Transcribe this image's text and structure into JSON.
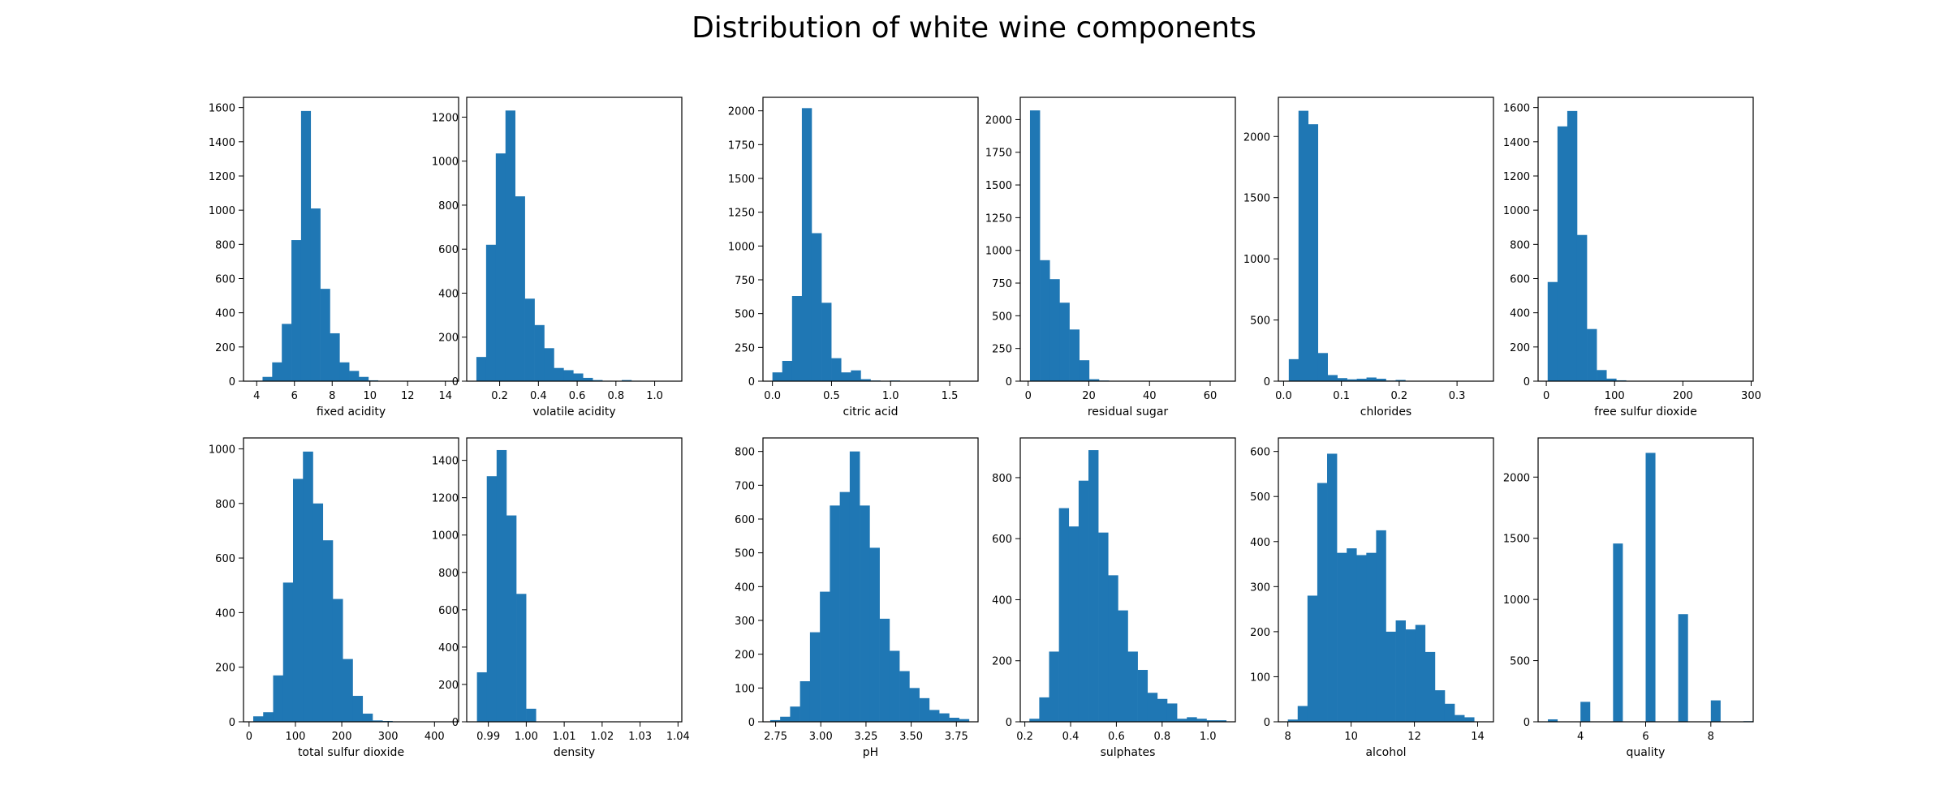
{
  "title": "Distribution of white wine components",
  "chart_data": [
    {
      "type": "bar",
      "xlabel": "fixed acidity",
      "xlim": [
        3.3,
        14.7
      ],
      "ylim": [
        0,
        1660
      ],
      "x_ticks": [
        4,
        6,
        8,
        10,
        12,
        14
      ],
      "y_ticks": [
        0,
        200,
        400,
        600,
        800,
        1000,
        1200,
        1400,
        1600
      ],
      "bin_start": 3.8,
      "bin_width": 0.51,
      "values": [
        3,
        25,
        110,
        335,
        825,
        1580,
        1010,
        540,
        280,
        110,
        60,
        25,
        5,
        2,
        1,
        0,
        0,
        0,
        0,
        1
      ]
    },
    {
      "type": "bar",
      "xlabel": "volatile acidity",
      "xlim": [
        0.03,
        1.14
      ],
      "ylim": [
        0,
        1290
      ],
      "x_ticks": [
        0.2,
        0.4,
        0.6,
        0.8,
        1.0
      ],
      "y_ticks": [
        0,
        200,
        400,
        600,
        800,
        1000,
        1200
      ],
      "bin_start": 0.08,
      "bin_width": 0.05,
      "values": [
        110,
        620,
        1035,
        1230,
        840,
        375,
        255,
        150,
        60,
        50,
        35,
        15,
        5,
        2,
        1,
        5,
        2,
        0,
        0,
        1
      ]
    },
    {
      "type": "bar",
      "xlabel": "citric acid",
      "xlim": [
        -0.08,
        1.74
      ],
      "ylim": [
        0,
        2100
      ],
      "x_ticks": [
        0.0,
        0.5,
        1.0,
        1.5
      ],
      "y_ticks": [
        0,
        250,
        500,
        750,
        1000,
        1250,
        1500,
        1750,
        2000
      ],
      "bin_start": 0.0,
      "bin_width": 0.083,
      "values": [
        65,
        150,
        630,
        2020,
        1095,
        580,
        170,
        65,
        80,
        15,
        5,
        3,
        5,
        1,
        0,
        0,
        0,
        0,
        0,
        1
      ]
    },
    {
      "type": "bar",
      "xlabel": "residual sugar",
      "xlim": [
        -2.6,
        68.3
      ],
      "ylim": [
        0,
        2170
      ],
      "x_ticks": [
        0,
        20,
        40,
        60
      ],
      "y_ticks": [
        0,
        250,
        500,
        750,
        1000,
        1250,
        1500,
        1750,
        2000
      ],
      "bin_start": 0.6,
      "bin_width": 3.25,
      "values": [
        2070,
        925,
        780,
        600,
        395,
        160,
        15,
        5,
        0,
        0,
        0,
        0,
        0,
        0,
        0,
        0,
        0,
        0,
        0,
        1
      ]
    },
    {
      "type": "bar",
      "xlabel": "chlorides",
      "xlim": [
        -0.009,
        0.363
      ],
      "ylim": [
        0,
        2320
      ],
      "x_ticks": [
        0.0,
        0.1,
        0.2,
        0.3
      ],
      "y_ticks": [
        0,
        500,
        1000,
        1500,
        2000
      ],
      "bin_start": 0.009,
      "bin_width": 0.0168,
      "values": [
        180,
        2210,
        2100,
        230,
        50,
        25,
        15,
        20,
        30,
        20,
        5,
        10,
        2,
        0,
        0,
        0,
        0,
        0,
        0,
        1
      ]
    },
    {
      "type": "bar",
      "xlabel": "free sulfur dioxide",
      "xlim": [
        -12,
        303
      ],
      "ylim": [
        0,
        1660
      ],
      "x_ticks": [
        0,
        100,
        200,
        300
      ],
      "y_ticks": [
        0,
        200,
        400,
        600,
        800,
        1000,
        1200,
        1400,
        1600
      ],
      "bin_start": 2,
      "bin_width": 14.35,
      "values": [
        580,
        1490,
        1580,
        855,
        305,
        65,
        15,
        5,
        2,
        1,
        0,
        0,
        0,
        0,
        0,
        0,
        0,
        0,
        0,
        1
      ]
    },
    {
      "type": "bar",
      "xlabel": "total sulfur dioxide",
      "xlim": [
        -12,
        452
      ],
      "ylim": [
        0,
        1040
      ],
      "x_ticks": [
        0,
        100,
        200,
        300,
        400
      ],
      "y_ticks": [
        0,
        200,
        400,
        600,
        800,
        1000
      ],
      "bin_start": 9,
      "bin_width": 21.45,
      "values": [
        20,
        35,
        170,
        510,
        890,
        990,
        800,
        665,
        450,
        230,
        95,
        30,
        5,
        3,
        1,
        0,
        0,
        0,
        0,
        1
      ]
    },
    {
      "type": "bar",
      "xlabel": "density",
      "xlim": [
        0.9843,
        1.041
      ],
      "ylim": [
        0,
        1520
      ],
      "x_ticks": [
        0.99,
        1.0,
        1.01,
        1.02,
        1.03,
        1.04
      ],
      "y_ticks": [
        0,
        200,
        400,
        600,
        800,
        1000,
        1200,
        1400
      ],
      "bin_start": 0.987,
      "bin_width": 0.00259,
      "values": [
        265,
        1315,
        1455,
        1105,
        685,
        70,
        0,
        0,
        0,
        0,
        0,
        0,
        0,
        0,
        0,
        0,
        0,
        0,
        0,
        1
      ]
    },
    {
      "type": "bar",
      "xlabel": "pH",
      "xlim": [
        2.68,
        3.87
      ],
      "ylim": [
        0,
        840
      ],
      "x_ticks": [
        2.75,
        3.0,
        3.25,
        3.5,
        3.75
      ],
      "y_ticks": [
        0,
        100,
        200,
        300,
        400,
        500,
        600,
        700,
        800
      ],
      "bin_start": 2.72,
      "bin_width": 0.055,
      "values": [
        5,
        15,
        45,
        120,
        265,
        385,
        640,
        680,
        800,
        640,
        515,
        305,
        210,
        150,
        100,
        70,
        35,
        25,
        12,
        8
      ]
    },
    {
      "type": "bar",
      "xlabel": "sulphates",
      "xlim": [
        0.18,
        1.12
      ],
      "ylim": [
        0,
        930
      ],
      "x_ticks": [
        0.2,
        0.4,
        0.6,
        0.8,
        1.0
      ],
      "y_ticks": [
        0,
        200,
        400,
        600,
        800
      ],
      "bin_start": 0.22,
      "bin_width": 0.043,
      "values": [
        10,
        80,
        230,
        700,
        640,
        790,
        890,
        620,
        480,
        365,
        230,
        170,
        95,
        75,
        60,
        10,
        15,
        10,
        5,
        5
      ]
    },
    {
      "type": "bar",
      "xlabel": "alcohol",
      "xlim": [
        7.7,
        14.5
      ],
      "ylim": [
        0,
        630
      ],
      "x_ticks": [
        8,
        10,
        12,
        14
      ],
      "y_ticks": [
        0,
        100,
        200,
        300,
        400,
        500,
        600
      ],
      "bin_start": 8.0,
      "bin_width": 0.31,
      "values": [
        5,
        35,
        280,
        530,
        595,
        375,
        385,
        370,
        375,
        425,
        200,
        225,
        205,
        215,
        155,
        70,
        40,
        15,
        10,
        0
      ]
    },
    {
      "type": "bar",
      "xlabel": "quality",
      "xlim": [
        2.7,
        9.3
      ],
      "ylim": [
        0,
        2320
      ],
      "x_ticks": [
        4,
        6,
        8
      ],
      "y_ticks": [
        0,
        500,
        1000,
        1500,
        2000
      ],
      "bin_start": 3.0,
      "bin_width": 0.3,
      "values": [
        20,
        0,
        0,
        0,
        0,
        0,
        0,
        163,
        0,
        0,
        0,
        0,
        0,
        0,
        1457,
        0,
        0,
        0,
        0,
        0,
        2198,
        0,
        0,
        0,
        880,
        0,
        0,
        0,
        0,
        0,
        0,
        175,
        0,
        0,
        0,
        5
      ],
      "bar_positions": [
        3.0,
        4.0,
        5.0,
        6.0,
        7.0,
        8.0,
        9.0
      ],
      "bar_values": [
        20,
        163,
        1457,
        2198,
        880,
        175,
        5
      ]
    }
  ]
}
